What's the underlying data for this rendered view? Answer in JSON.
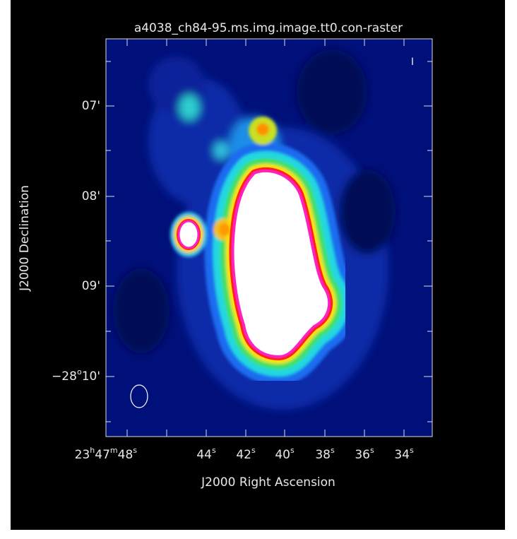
{
  "title": "a4038_ch84-95.ms.img.image.tt0.con-raster",
  "x_axis": {
    "label": "J2000 Right Ascension",
    "ticks": [
      [
        "23",
        "h",
        "47",
        "m",
        "48",
        "s"
      ],
      [
        "44",
        "s"
      ],
      [
        "42",
        "s"
      ],
      [
        "40",
        "s"
      ],
      [
        "38",
        "s"
      ],
      [
        "36",
        "s"
      ],
      [
        "34",
        "s"
      ]
    ]
  },
  "y_axis": {
    "label": "J2000 Declination",
    "ticks": [
      [
        "07'"
      ],
      [
        "08'"
      ],
      [
        "09'"
      ],
      [
        "−28",
        "o",
        "10'"
      ]
    ]
  },
  "stokes": "I"
}
